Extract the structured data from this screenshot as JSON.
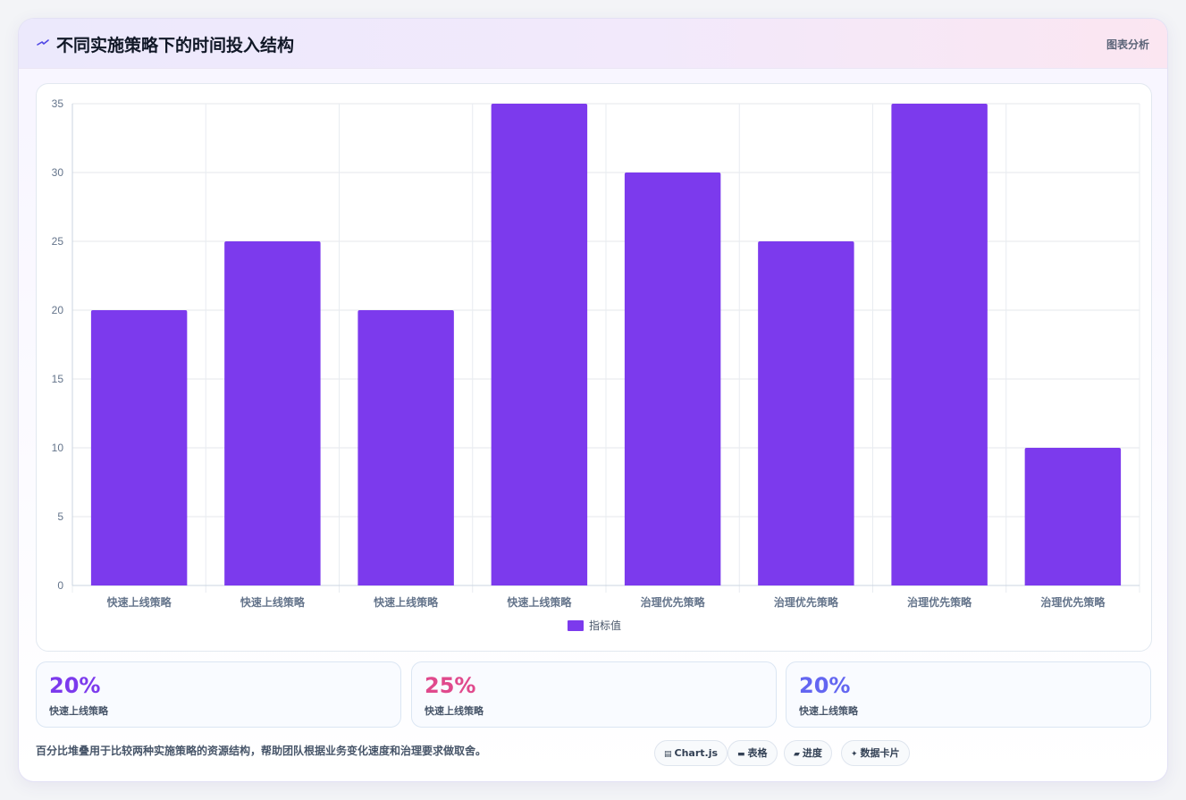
{
  "header": {
    "icon": "sparkle-icon",
    "title": "不同实施策略下的时间投入结构",
    "tag": "图表分析"
  },
  "chart_data": {
    "type": "bar",
    "categories": [
      "快速上线策略",
      "快速上线策略",
      "快速上线策略",
      "快速上线策略",
      "治理优先策略",
      "治理优先策略",
      "治理优先策略",
      "治理优先策略"
    ],
    "series": [
      {
        "name": "指标值",
        "values": [
          20,
          25,
          20,
          35,
          30,
          25,
          35,
          10
        ],
        "color": "#7c3aed"
      }
    ],
    "ylim": [
      0,
      35
    ],
    "yticks": [
      "0",
      "5",
      "10",
      "15",
      "20",
      "25",
      "30",
      "35"
    ],
    "grid": true,
    "legend": "bottom-center"
  },
  "stats": [
    {
      "value": "20%",
      "label": "快速上线策略",
      "color": "#7c3aed"
    },
    {
      "value": "25%",
      "label": "快速上线策略",
      "color": "#e0498c"
    },
    {
      "value": "20%",
      "label": "快速上线策略",
      "color": "#6366f1"
    }
  ],
  "footer": {
    "description": "百分比堆叠用于比较两种实施策略的资源结构，帮助团队根据业务变化速度和治理要求做取舍。",
    "chips": [
      {
        "icon": "chart-icon",
        "label": "Chart.js"
      },
      {
        "icon": "table-icon",
        "label": "表格"
      },
      {
        "icon": "progress-icon",
        "label": "进度"
      },
      {
        "icon": "card-icon",
        "label": "数据卡片"
      }
    ]
  }
}
